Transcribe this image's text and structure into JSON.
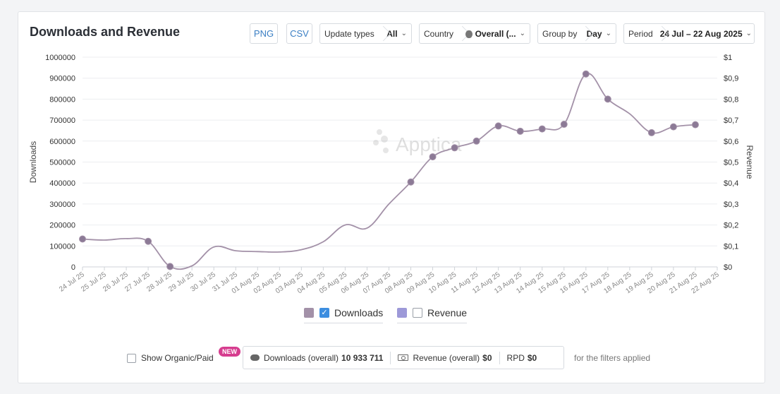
{
  "title": "Downloads and Revenue",
  "toolbar": {
    "png_label": "PNG",
    "csv_label": "CSV",
    "update_types": {
      "label": "Update types",
      "value": "All"
    },
    "country": {
      "label": "Country",
      "value": "Overall (..."
    },
    "group_by": {
      "label": "Group by",
      "value": "Day"
    },
    "period": {
      "label": "Period",
      "value": "24 Jul – 22 Aug 2025"
    }
  },
  "watermark": "Apptica",
  "chart_data": {
    "type": "line",
    "ylabel": "Downloads",
    "y2label": "Revenue",
    "ylim": [
      0,
      1000000
    ],
    "y2lim": [
      0,
      1
    ],
    "y_ticks": [
      "0",
      "100000",
      "200000",
      "300000",
      "400000",
      "500000",
      "600000",
      "700000",
      "800000",
      "900000",
      "1000000"
    ],
    "y2_ticks": [
      "$0",
      "$0,1",
      "$0,2",
      "$0,3",
      "$0,4",
      "$0,5",
      "$0,6",
      "$0,7",
      "$0,8",
      "$0,9",
      "$1"
    ],
    "categories": [
      "24 Jul 25",
      "25 Jul 25",
      "26 Jul 25",
      "27 Jul 25",
      "28 Jul 25",
      "29 Jul 25",
      "30 Jul 25",
      "31 Jul 25",
      "01 Aug 25",
      "02 Aug 25",
      "03 Aug 25",
      "04 Aug 25",
      "05 Aug 25",
      "06 Aug 25",
      "07 Aug 25",
      "08 Aug 25",
      "09 Aug 25",
      "10 Aug 25",
      "11 Aug 25",
      "12 Aug 25",
      "13 Aug 25",
      "14 Aug 25",
      "15 Aug 25",
      "16 Aug 25",
      "17 Aug 25",
      "18 Aug 25",
      "19 Aug 25",
      "20 Aug 25",
      "21 Aug 25",
      "22 Aug 25"
    ],
    "series": [
      {
        "name": "Downloads",
        "color": "#a391a8",
        "values": [
          133000,
          128000,
          135000,
          122000,
          2000,
          5000,
          95000,
          77000,
          73000,
          71000,
          82000,
          120000,
          200000,
          185000,
          300000,
          405000,
          525000,
          568000,
          600000,
          672000,
          647000,
          658000,
          680000,
          920000,
          800000,
          730000,
          640000,
          668000,
          678000,
          null
        ],
        "markers": [
          0,
          3,
          4,
          15,
          16,
          17,
          18,
          19,
          20,
          21,
          22,
          23,
          24,
          26,
          27,
          28
        ]
      }
    ],
    "legend": [
      {
        "name": "Downloads",
        "color": "#a391a8",
        "checked": true
      },
      {
        "name": "Revenue",
        "color": "#9d99d8",
        "checked": false
      }
    ],
    "grid": true
  },
  "footer": {
    "show_organic_label": "Show Organic/Paid",
    "new_badge": "NEW",
    "downloads_label": "Downloads (overall)",
    "downloads_value": "10 933 711",
    "revenue_label": "Revenue (overall)",
    "revenue_value": "$0",
    "rpd_label": "RPD",
    "rpd_value": "$0",
    "filters_note": "for the filters applied"
  }
}
